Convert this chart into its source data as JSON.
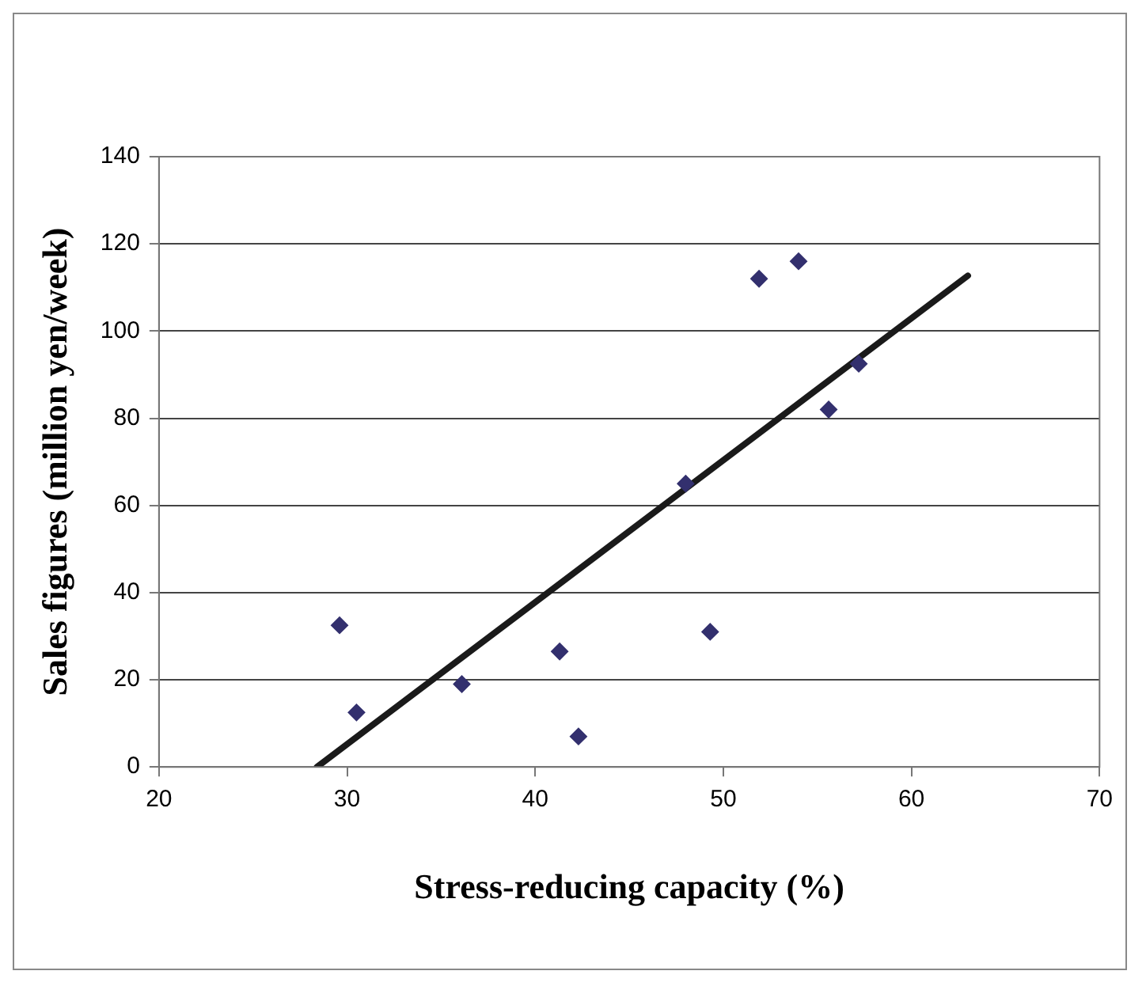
{
  "chart_data": {
    "type": "scatter",
    "xlabel": "Stress-reducing capacity (%)",
    "ylabel": "Sales figures (million yen/week)",
    "xlim": [
      20,
      70
    ],
    "xticks": [
      20,
      30,
      40,
      50,
      60,
      70
    ],
    "ylim": [
      0,
      140
    ],
    "yticks": [
      0,
      20,
      40,
      60,
      80,
      100,
      120,
      140
    ],
    "grid": "y",
    "legend": false,
    "series": [
      {
        "type": "scatter",
        "marker": "diamond",
        "color": "#33306e",
        "x": [
          29.6,
          30.5,
          36.1,
          41.3,
          42.3,
          48.0,
          49.3,
          51.9,
          54.0,
          55.6,
          57.2
        ],
        "values": [
          32.5,
          12.5,
          19,
          26.5,
          7,
          65,
          31,
          112,
          116,
          82,
          92.5
        ]
      },
      {
        "type": "line",
        "marker": "none",
        "color": "#1a1a1a",
        "x": [
          28.4,
          63.0
        ],
        "values": [
          0,
          112.7
        ]
      }
    ]
  }
}
